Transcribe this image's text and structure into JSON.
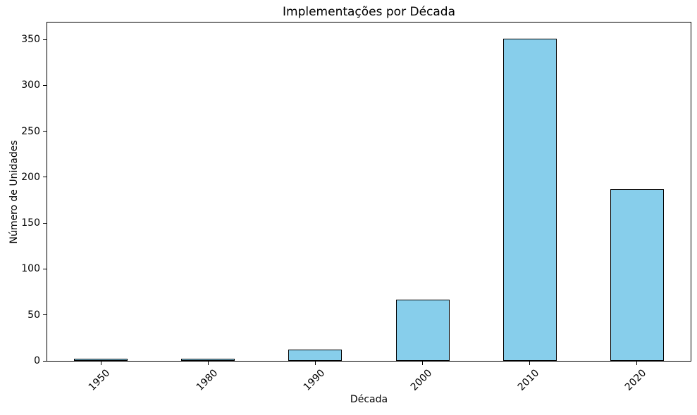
{
  "chart_data": {
    "type": "bar",
    "title": "Implementações por Década",
    "xlabel": "Década",
    "ylabel": "Número de Unidades",
    "categories": [
      "1950",
      "1980",
      "1990",
      "2000",
      "2010",
      "2020"
    ],
    "values": [
      2,
      2,
      12,
      67,
      351,
      187
    ],
    "yticks": [
      0,
      50,
      100,
      150,
      200,
      250,
      300,
      350
    ],
    "ylim": [
      0,
      368.55
    ],
    "bar_color": "#87CEEB",
    "bar_edge_color": "#000000",
    "bar_width_fraction": 0.5,
    "x_tick_rotation": 45,
    "grid": false,
    "legend_position": "none",
    "background_color": "#ffffff"
  }
}
